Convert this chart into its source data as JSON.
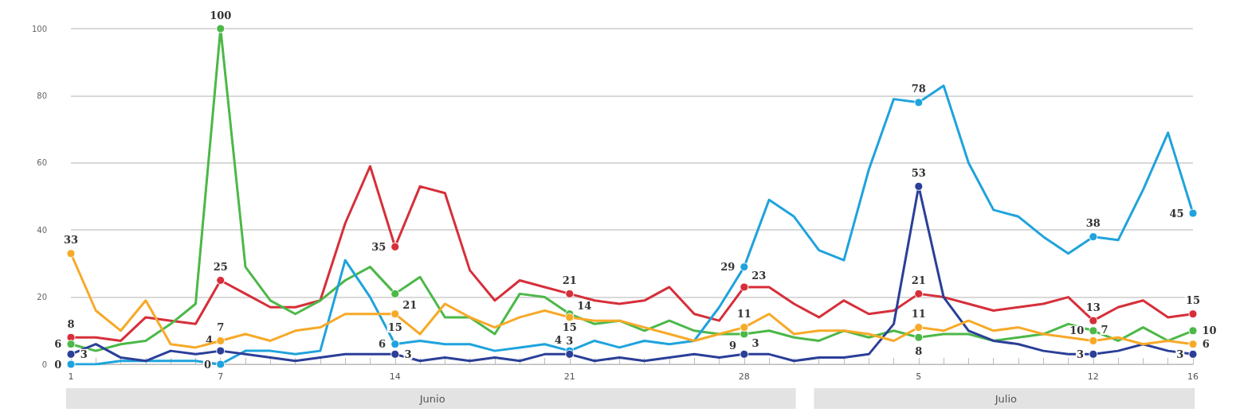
{
  "chart_data": {
    "type": "line",
    "categories": [
      "1",
      null,
      null,
      null,
      null,
      null,
      "7",
      null,
      null,
      null,
      null,
      null,
      null,
      "14",
      null,
      null,
      null,
      null,
      null,
      null,
      "21",
      null,
      null,
      null,
      null,
      null,
      null,
      "28",
      null,
      null,
      null,
      null,
      null,
      null,
      "5",
      null,
      null,
      null,
      null,
      null,
      null,
      "12",
      null,
      null,
      null,
      "16"
    ],
    "series": [
      {
        "color": "#d62f3a",
        "values": [
          8,
          8,
          7,
          14,
          13,
          12,
          25,
          21,
          17,
          17,
          19,
          42,
          59,
          35,
          53,
          51,
          28,
          19,
          25,
          23,
          21,
          19,
          18,
          19,
          23,
          15,
          13,
          23,
          23,
          18,
          14,
          19,
          15,
          16,
          21,
          20,
          18,
          16,
          17,
          18,
          20,
          13,
          17,
          19,
          14,
          15
        ],
        "value_labels": [
          "8",
          null,
          null,
          null,
          null,
          null,
          "25",
          null,
          null,
          null,
          null,
          null,
          null,
          "35",
          null,
          null,
          null,
          null,
          null,
          null,
          "21",
          null,
          null,
          null,
          null,
          null,
          null,
          "23",
          null,
          null,
          null,
          null,
          null,
          null,
          "21",
          null,
          null,
          null,
          null,
          null,
          null,
          "13",
          null,
          null,
          null,
          "15"
        ]
      },
      {
        "color": "#4cb848",
        "values": [
          6,
          4,
          6,
          7,
          12,
          18,
          100,
          29,
          19,
          15,
          19,
          25,
          29,
          21,
          26,
          14,
          14,
          9,
          21,
          20,
          15,
          12,
          13,
          10,
          13,
          10,
          9,
          9,
          10,
          8,
          7,
          10,
          8,
          10,
          8,
          9,
          9,
          7,
          8,
          9,
          12,
          10,
          7,
          11,
          7,
          10
        ],
        "value_labels": [
          "6",
          null,
          null,
          null,
          null,
          null,
          "100",
          null,
          null,
          null,
          null,
          null,
          null,
          "21",
          null,
          null,
          null,
          null,
          null,
          null,
          "15",
          null,
          null,
          null,
          null,
          null,
          null,
          "9",
          null,
          null,
          null,
          null,
          null,
          null,
          "8",
          null,
          null,
          null,
          null,
          null,
          null,
          "10",
          null,
          null,
          null,
          "10"
        ]
      },
      {
        "color": "#1fa3dc",
        "values": [
          0,
          0,
          1,
          1,
          1,
          1,
          0,
          4,
          4,
          3,
          4,
          31,
          20,
          6,
          7,
          6,
          6,
          4,
          5,
          6,
          4,
          7,
          5,
          7,
          6,
          7,
          17,
          29,
          49,
          44,
          34,
          31,
          58,
          79,
          78,
          83,
          60,
          46,
          44,
          38,
          33,
          38,
          37,
          52,
          69,
          45
        ],
        "value_labels": [
          "0",
          null,
          null,
          null,
          null,
          null,
          "0",
          null,
          null,
          null,
          null,
          null,
          null,
          "6",
          null,
          null,
          null,
          null,
          null,
          null,
          "4",
          null,
          null,
          null,
          null,
          null,
          null,
          "29",
          null,
          null,
          null,
          null,
          null,
          null,
          "78",
          null,
          null,
          null,
          null,
          null,
          null,
          "38",
          null,
          null,
          null,
          "45"
        ]
      },
      {
        "color": "#2b3f98",
        "values": [
          3,
          6,
          2,
          1,
          4,
          3,
          4,
          3,
          2,
          1,
          2,
          3,
          3,
          3,
          1,
          2,
          1,
          2,
          1,
          3,
          3,
          1,
          2,
          1,
          2,
          3,
          2,
          3,
          3,
          1,
          2,
          2,
          3,
          12,
          53,
          20,
          10,
          7,
          6,
          4,
          3,
          3,
          4,
          6,
          4,
          3
        ],
        "value_labels": [
          "3",
          null,
          null,
          null,
          null,
          null,
          "4",
          null,
          null,
          null,
          null,
          null,
          null,
          "3",
          null,
          null,
          null,
          null,
          null,
          null,
          "3",
          null,
          null,
          null,
          null,
          null,
          null,
          "3",
          null,
          null,
          null,
          null,
          null,
          null,
          "53",
          null,
          null,
          null,
          null,
          null,
          null,
          "3",
          null,
          null,
          null,
          "3"
        ]
      },
      {
        "color": "#f7a928",
        "values": [
          33,
          16,
          10,
          19,
          6,
          5,
          7,
          9,
          7,
          10,
          11,
          15,
          15,
          15,
          9,
          18,
          14,
          11,
          14,
          16,
          14,
          13,
          13,
          11,
          9,
          7,
          9,
          11,
          15,
          9,
          10,
          10,
          9,
          7,
          11,
          10,
          13,
          10,
          11,
          9,
          8,
          7,
          8,
          6,
          7,
          6
        ],
        "value_labels": [
          "33",
          null,
          null,
          null,
          null,
          null,
          "7",
          null,
          null,
          null,
          null,
          null,
          null,
          "15",
          null,
          null,
          null,
          null,
          null,
          null,
          "14",
          null,
          null,
          null,
          null,
          null,
          null,
          "11",
          null,
          null,
          null,
          null,
          null,
          null,
          "11",
          null,
          null,
          null,
          null,
          null,
          null,
          "7",
          null,
          null,
          null,
          "6"
        ]
      }
    ],
    "annotations": [
      "Junio",
      "Julio"
    ],
    "ylim": [
      0,
      100
    ],
    "yticks": [
      0,
      20,
      40,
      60,
      80,
      100
    ],
    "grid": "y",
    "line_style": "solid"
  }
}
